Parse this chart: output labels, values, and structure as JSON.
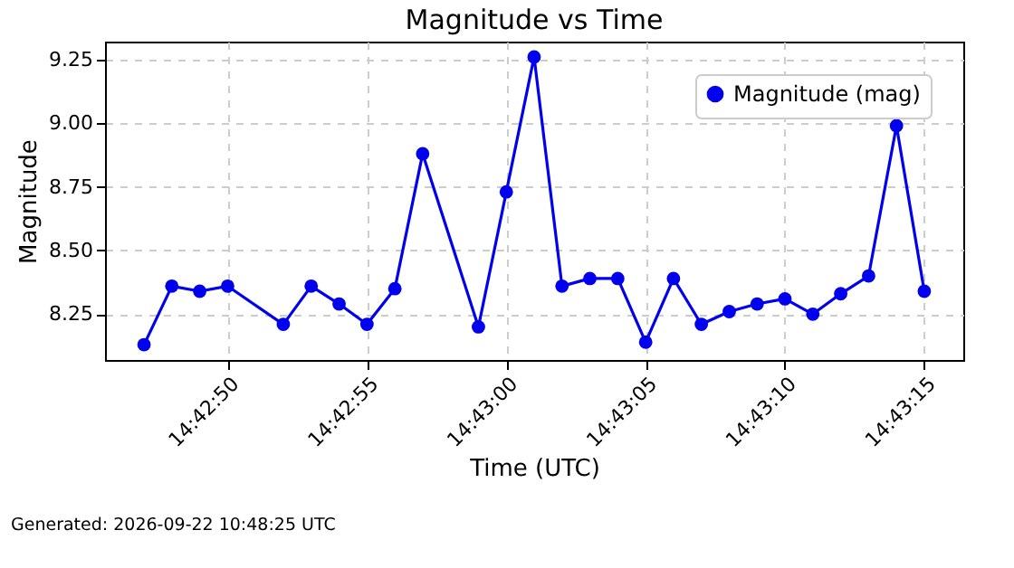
{
  "chart_data": {
    "type": "line",
    "title": "Magnitude vs Time",
    "xlabel": "Time (UTC)",
    "ylabel": "Magnitude",
    "x": [
      14.713056,
      14.713333,
      14.713611,
      14.713889,
      14.714444,
      14.714722,
      14.715,
      14.715278,
      14.715556,
      14.715833,
      14.716389,
      14.716667,
      14.716944,
      14.717222,
      14.7175,
      14.717778,
      14.718056,
      14.718333,
      14.718611,
      14.718889,
      14.719167,
      14.719444,
      14.719722,
      14.72,
      14.720278,
      14.720556,
      14.720833
    ],
    "series": [
      {
        "name": "Magnitude (mag)",
        "color": "#0000ee",
        "values": [
          8.13,
          8.36,
          8.34,
          8.36,
          8.21,
          8.36,
          8.29,
          8.21,
          8.35,
          8.88,
          8.2,
          8.73,
          9.26,
          8.36,
          8.39,
          8.39,
          8.14,
          8.39,
          8.21,
          8.26,
          8.29,
          8.31,
          8.25,
          8.33,
          8.4,
          8.99,
          8.34
        ]
      }
    ],
    "xlim": [
      14.712667,
      14.721222
    ],
    "xticks": [
      {
        "value": 14.713889,
        "label": "14:42:50"
      },
      {
        "value": 14.715278,
        "label": "14:42:55"
      },
      {
        "value": 14.716667,
        "label": "14:43:00"
      },
      {
        "value": 14.718056,
        "label": "14:43:05"
      },
      {
        "value": 14.719444,
        "label": "14:43:10"
      },
      {
        "value": 14.720833,
        "label": "14:43:15"
      }
    ],
    "ylim": [
      8.07,
      9.32
    ],
    "yticks": [
      {
        "value": 8.25,
        "label": "8.25"
      },
      {
        "value": 8.5,
        "label": "8.50"
      },
      {
        "value": 8.75,
        "label": "8.75"
      },
      {
        "value": 9.0,
        "label": "9.00"
      },
      {
        "value": 9.25,
        "label": "9.25"
      }
    ],
    "grid": true,
    "legend": "top right",
    "marker": "circle",
    "line_style": "solid",
    "annotations": [
      "Generated: 2026-09-22 10:48:25 UTC"
    ]
  }
}
